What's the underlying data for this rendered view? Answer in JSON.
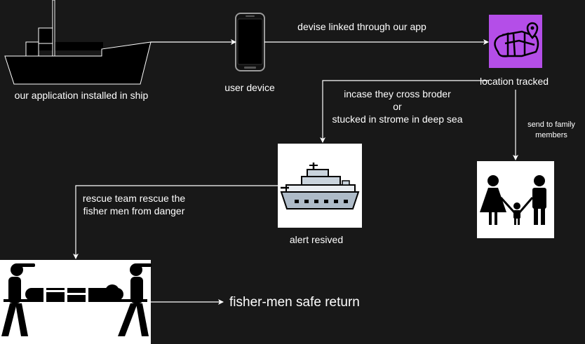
{
  "labels": {
    "ship": "our application installed in ship",
    "user_device": "user device",
    "devise_linked": "devise linked through our app",
    "location_tracked": "location tracked",
    "condition_line1": "incase they cross broder",
    "condition_or": "or",
    "condition_line2": "stucked in strome in deep sea",
    "send_family_line1": "send to family",
    "send_family_line2": "members",
    "rescue_line1": "rescue team rescue the",
    "rescue_line2": "fisher men from danger",
    "alert_received": "alert resived",
    "safe_return": "fisher-men safe return"
  },
  "icons": {
    "ship": "ship-icon",
    "phone": "smartphone-icon",
    "map": "map-location-icon",
    "warship": "warship-icon",
    "family": "family-icon",
    "rescue": "stretcher-rescue-icon"
  },
  "colors": {
    "background": "#181818",
    "text": "#ffffff",
    "map_icon_bg": "#b44ee8"
  }
}
